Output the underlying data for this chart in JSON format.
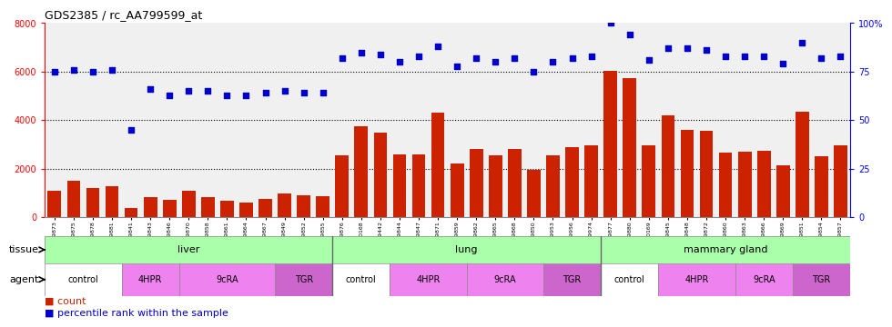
{
  "title": "GDS2385 / rc_AA799599_at",
  "samples": [
    "GSM89873",
    "GSM89875",
    "GSM89878",
    "GSM89881",
    "GSM89841",
    "GSM89843",
    "GSM89846",
    "GSM89870",
    "GSM89858",
    "GSM89861",
    "GSM89864",
    "GSM89867",
    "GSM89849",
    "GSM89852",
    "GSM89855",
    "GSM89876",
    "GSM90168",
    "GSM89442",
    "GSM89844",
    "GSM89847",
    "GSM89871",
    "GSM89859",
    "GSM89862",
    "GSM89865",
    "GSM89868",
    "GSM89850",
    "GSM89953",
    "GSM89956",
    "GSM89974",
    "GSM89877",
    "GSM89880",
    "GSM90169",
    "GSM89845",
    "GSM89848",
    "GSM89872",
    "GSM89860",
    "GSM89863",
    "GSM89866",
    "GSM89869",
    "GSM89851",
    "GSM89854",
    "GSM89857"
  ],
  "counts": [
    1100,
    1500,
    1200,
    1300,
    380,
    820,
    720,
    1100,
    820,
    680,
    600,
    740,
    1000,
    900,
    870,
    2550,
    3750,
    3500,
    2600,
    2600,
    4300,
    2200,
    2800,
    2550,
    2800,
    1950,
    2550,
    2900,
    2950,
    6050,
    5750,
    2950,
    4200,
    3600,
    3550,
    2650,
    2700,
    2750,
    2150,
    4350,
    2500,
    2950
  ],
  "percentiles": [
    75,
    76,
    75,
    76,
    45,
    66,
    63,
    65,
    65,
    63,
    63,
    64,
    65,
    64,
    64,
    82,
    85,
    84,
    80,
    83,
    88,
    78,
    82,
    80,
    82,
    75,
    80,
    82,
    83,
    100,
    94,
    81,
    87,
    87,
    86,
    83,
    83,
    83,
    79,
    90,
    82,
    83
  ],
  "tissue_boundaries": [
    15,
    29
  ],
  "tissue_groups": [
    {
      "label": "liver",
      "start": 0,
      "end": 15
    },
    {
      "label": "lung",
      "start": 15,
      "end": 29
    },
    {
      "label": "mammary gland",
      "start": 29,
      "end": 42
    }
  ],
  "agent_groups": [
    {
      "label": "control",
      "start": 0,
      "end": 4,
      "color": "#ffffff"
    },
    {
      "label": "4HPR",
      "start": 4,
      "end": 7,
      "color": "#ee82ee"
    },
    {
      "label": "9cRA",
      "start": 7,
      "end": 12,
      "color": "#ee82ee"
    },
    {
      "label": "TGR",
      "start": 12,
      "end": 15,
      "color": "#cc66cc"
    },
    {
      "label": "control",
      "start": 15,
      "end": 18,
      "color": "#ffffff"
    },
    {
      "label": "4HPR",
      "start": 18,
      "end": 22,
      "color": "#ee82ee"
    },
    {
      "label": "9cRA",
      "start": 22,
      "end": 26,
      "color": "#ee82ee"
    },
    {
      "label": "TGR",
      "start": 26,
      "end": 29,
      "color": "#cc66cc"
    },
    {
      "label": "control",
      "start": 29,
      "end": 32,
      "color": "#ffffff"
    },
    {
      "label": "4HPR",
      "start": 32,
      "end": 36,
      "color": "#ee82ee"
    },
    {
      "label": "9cRA",
      "start": 36,
      "end": 39,
      "color": "#ee82ee"
    },
    {
      "label": "TGR",
      "start": 39,
      "end": 42,
      "color": "#cc66cc"
    }
  ],
  "bar_color": "#cc2200",
  "dot_color": "#0000cc",
  "tissue_color": "#aaffaa",
  "ylim_left": [
    0,
    8000
  ],
  "ylim_right": [
    0,
    100
  ],
  "yticks_left": [
    0,
    2000,
    4000,
    6000,
    8000
  ],
  "yticks_right": [
    0,
    25,
    50,
    75,
    100
  ],
  "ytick_labels_right": [
    "0",
    "25",
    "50",
    "75",
    "100%"
  ],
  "background_color": "#ffffff",
  "plot_bg": "#f0f0f0"
}
